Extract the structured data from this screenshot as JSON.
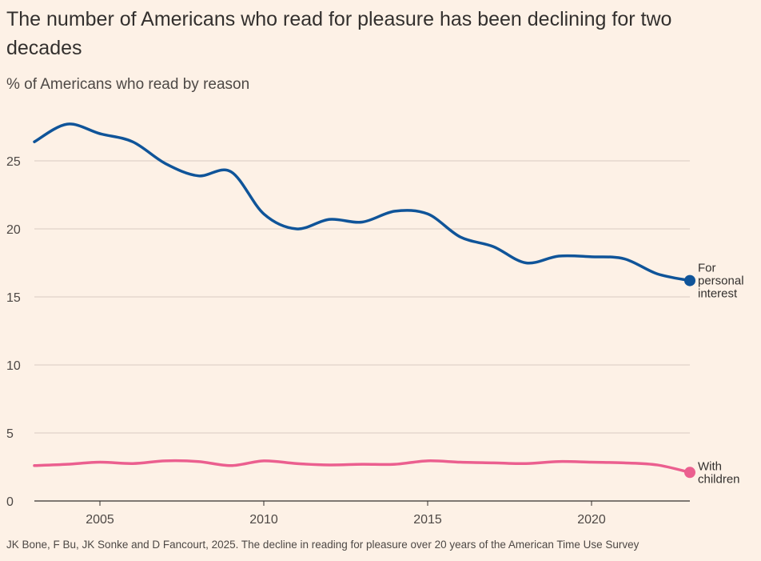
{
  "chart_data": {
    "type": "line",
    "title": "The number of Americans who read for pleasure has been declining for two decades",
    "subtitle": "% of Americans who read by reason",
    "source": "JK Bone, F Bu, JK Sonke and D Fancourt, 2025. The decline in reading for pleasure over 20 years of the American Time Use Survey",
    "xlabel": "",
    "ylabel": "",
    "x": [
      2003,
      2004,
      2005,
      2006,
      2007,
      2008,
      2009,
      2010,
      2011,
      2012,
      2013,
      2014,
      2015,
      2016,
      2017,
      2018,
      2019,
      2020,
      2021,
      2022,
      2023
    ],
    "xlim": [
      2003,
      2023
    ],
    "ylim": [
      0,
      28
    ],
    "xticks": [
      "2005",
      "2010",
      "2015",
      "2020"
    ],
    "yticks": [
      "0",
      "5",
      "10",
      "15",
      "20",
      "25"
    ],
    "grid": true,
    "series": [
      {
        "name": "For personal interest",
        "label_lines": [
          "For",
          "personal",
          "interest"
        ],
        "color": "#0f5499",
        "values": [
          26.4,
          27.7,
          27.0,
          26.4,
          24.8,
          23.9,
          24.2,
          21.1,
          20.0,
          20.7,
          20.5,
          21.3,
          21.1,
          19.4,
          18.7,
          17.5,
          18.0,
          17.95,
          17.8,
          16.7,
          16.2
        ]
      },
      {
        "name": "With children",
        "label_lines": [
          "With",
          "children"
        ],
        "color": "#eb5f8f",
        "values": [
          2.6,
          2.7,
          2.85,
          2.75,
          2.95,
          2.9,
          2.6,
          2.95,
          2.75,
          2.65,
          2.7,
          2.7,
          2.95,
          2.85,
          2.8,
          2.75,
          2.9,
          2.85,
          2.8,
          2.65,
          2.1
        ]
      }
    ]
  }
}
